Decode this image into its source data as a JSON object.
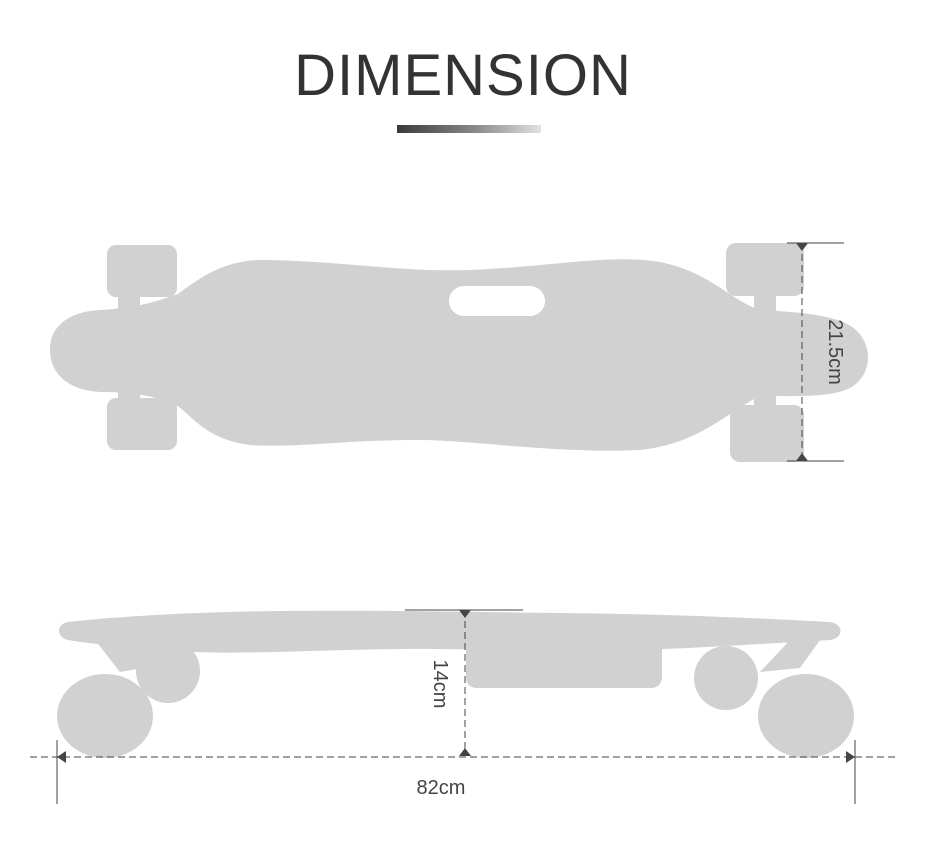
{
  "title": "DIMENSION",
  "colors": {
    "board": "#d1d1d1",
    "title": "#333333",
    "dimension_line": "#444444"
  },
  "dimensions": {
    "width_label": "21.5cm",
    "height_label": "14cm",
    "length_label": "82cm"
  }
}
